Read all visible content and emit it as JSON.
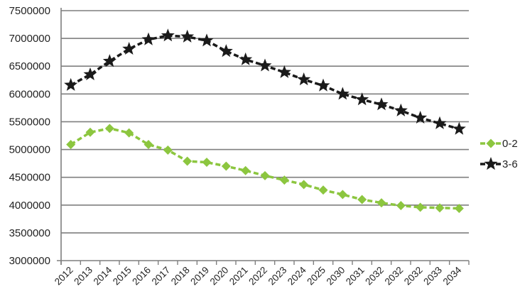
{
  "chart_data": {
    "type": "line",
    "title": "",
    "xlabel": "",
    "ylabel": "",
    "categories": [
      "2012",
      "2013",
      "2014",
      "2015",
      "2016",
      "2017",
      "2018",
      "2019",
      "2020",
      "2021",
      "2022",
      "2023",
      "2024",
      "2025",
      "2030",
      "2031",
      "2032",
      "2032",
      "2032",
      "2033",
      "2034"
    ],
    "ylim": [
      3000000,
      7500000
    ],
    "yticks": [
      "3000000",
      "3500000",
      "4000000",
      "4500000",
      "5000000",
      "5500000",
      "6000000",
      "6500000",
      "7000000",
      "7500000"
    ],
    "grid": "horizontal",
    "legend_position": "right",
    "series": [
      {
        "name": "0-2",
        "color": "#8cc63f",
        "marker": "diamond",
        "values": [
          5090000,
          5310000,
          5380000,
          5300000,
          5090000,
          4990000,
          4790000,
          4770000,
          4700000,
          4620000,
          4530000,
          4450000,
          4370000,
          4270000,
          4190000,
          4100000,
          4040000,
          3990000,
          3960000,
          3950000,
          3940000
        ]
      },
      {
        "name": "3-6",
        "color": "#1a1a1a",
        "marker": "star",
        "values": [
          6160000,
          6350000,
          6590000,
          6810000,
          6980000,
          7050000,
          7030000,
          6960000,
          6770000,
          6620000,
          6510000,
          6390000,
          6260000,
          6150000,
          6000000,
          5900000,
          5810000,
          5700000,
          5570000,
          5470000,
          5370000
        ]
      }
    ]
  }
}
